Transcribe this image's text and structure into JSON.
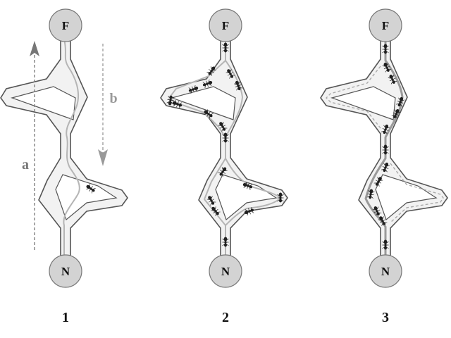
{
  "nodes": {
    "food_label": "F",
    "nest_label": "N"
  },
  "arrows": {
    "a_label": "a",
    "b_label": "b"
  },
  "panels": [
    {
      "label": "1"
    },
    {
      "label": "2"
    },
    {
      "label": "3"
    }
  ],
  "colors": {
    "arrow_a": "#777777",
    "arrow_b": "#999999"
  }
}
